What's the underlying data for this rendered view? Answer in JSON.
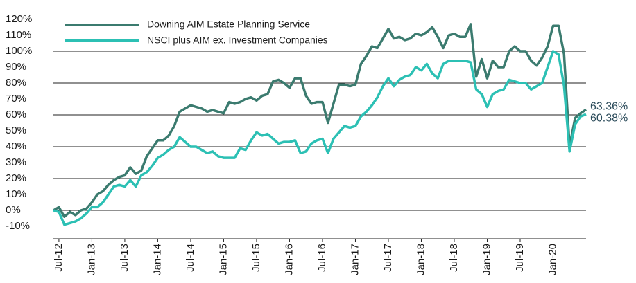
{
  "chart_data": {
    "type": "line",
    "categories": [
      null,
      "Jul-12",
      null,
      null,
      null,
      null,
      null,
      "Jan-13",
      null,
      null,
      null,
      null,
      null,
      "Jul-13",
      null,
      null,
      null,
      null,
      null,
      "Jan-14",
      null,
      null,
      null,
      null,
      null,
      "Jul-14",
      null,
      null,
      null,
      null,
      null,
      "Jan-15",
      null,
      null,
      null,
      null,
      null,
      "Jul-15",
      null,
      null,
      null,
      null,
      null,
      "Jan-16",
      null,
      null,
      null,
      null,
      null,
      "Jul-16",
      null,
      null,
      null,
      null,
      null,
      "Jan-17",
      null,
      null,
      null,
      null,
      null,
      "Jul-17",
      null,
      null,
      null,
      null,
      null,
      "Jan-18",
      null,
      null,
      null,
      null,
      null,
      "Jul-18",
      null,
      null,
      null,
      null,
      null,
      "Jan-19",
      null,
      null,
      null,
      null,
      null,
      "Jul-19",
      null,
      null,
      null,
      null,
      null,
      "Jan-20",
      null,
      null,
      null,
      null,
      null,
      null
    ],
    "series": [
      {
        "name": "Downing AIM Estate Planning Service",
        "color": "#3b7b6f",
        "values": [
          0,
          2,
          -4,
          -1,
          -3,
          0,
          1,
          5,
          10,
          12,
          16,
          19,
          21,
          22,
          27,
          23,
          25,
          34,
          39,
          44,
          44,
          47,
          53,
          62,
          64,
          66,
          65,
          64,
          62,
          63,
          62,
          61,
          68,
          67,
          68,
          70,
          71,
          69,
          72,
          73,
          81,
          82,
          80,
          77,
          83,
          83,
          72,
          67,
          68,
          68,
          55,
          67,
          79,
          79,
          78,
          79,
          92,
          97,
          103,
          102,
          108,
          114,
          108,
          109,
          107,
          108,
          111,
          110,
          112,
          115,
          109,
          102,
          110,
          111,
          109,
          109,
          117,
          84,
          95,
          83,
          94,
          90,
          90,
          100,
          103,
          100,
          100,
          94,
          91,
          96,
          103,
          116,
          116,
          98,
          40,
          58,
          61,
          63.36
        ],
        "value_labels": [
          null,
          null,
          null,
          null,
          null,
          null,
          null,
          null,
          null,
          null,
          null,
          null,
          null,
          null,
          null,
          null,
          null,
          null,
          null,
          null,
          null,
          null,
          null,
          null,
          null,
          null,
          null,
          null,
          null,
          null,
          null,
          null,
          null,
          null,
          null,
          null,
          null,
          null,
          null,
          null,
          null,
          null,
          null,
          null,
          null,
          null,
          null,
          null,
          null,
          null,
          null,
          null,
          null,
          null,
          null,
          null,
          null,
          null,
          null,
          null,
          null,
          null,
          null,
          null,
          null,
          null,
          null,
          null,
          null,
          null,
          null,
          null,
          null,
          null,
          null,
          null,
          null,
          null,
          null,
          null,
          null,
          null,
          null,
          null,
          null,
          null,
          null,
          null,
          null,
          null,
          null,
          null,
          null,
          null,
          null,
          null,
          null,
          "63.36%"
        ]
      },
      {
        "name": "NSCI plus AIM ex. Investment Companies",
        "color": "#2cc0b4",
        "values": [
          0,
          -1,
          -9,
          -8,
          -7,
          -5,
          -2,
          2,
          2,
          5,
          10,
          15,
          16,
          15,
          19,
          15,
          22,
          24,
          28,
          33,
          35,
          38,
          40,
          46,
          43,
          40,
          40,
          38,
          36,
          37,
          34,
          33,
          33,
          33,
          39,
          38,
          44,
          49,
          47,
          48,
          45,
          42,
          43,
          43,
          44,
          36,
          37,
          42,
          44,
          45,
          36,
          45,
          49,
          53,
          52,
          53,
          59,
          62,
          66,
          71,
          78,
          83,
          78,
          82,
          84,
          85,
          90,
          88,
          92,
          86,
          83,
          92,
          94,
          94,
          94,
          94,
          93,
          76,
          73,
          65,
          73,
          75,
          76,
          82,
          81,
          80,
          80,
          76,
          78,
          80,
          90,
          100,
          98,
          78,
          37,
          54,
          59,
          60.38
        ],
        "value_labels": [
          null,
          null,
          null,
          null,
          null,
          null,
          null,
          null,
          null,
          null,
          null,
          null,
          null,
          null,
          null,
          null,
          null,
          null,
          null,
          null,
          null,
          null,
          null,
          null,
          null,
          null,
          null,
          null,
          null,
          null,
          null,
          null,
          null,
          null,
          null,
          null,
          null,
          null,
          null,
          null,
          null,
          null,
          null,
          null,
          null,
          null,
          null,
          null,
          null,
          null,
          null,
          null,
          null,
          null,
          null,
          null,
          null,
          null,
          null,
          null,
          null,
          null,
          null,
          null,
          null,
          null,
          null,
          null,
          null,
          null,
          null,
          null,
          null,
          null,
          null,
          null,
          null,
          null,
          null,
          null,
          null,
          null,
          null,
          null,
          null,
          null,
          null,
          null,
          null,
          null,
          null,
          null,
          null,
          null,
          null,
          null,
          null,
          "60.38%"
        ]
      }
    ],
    "ylim": [
      -10,
      120
    ],
    "yticks": [
      {
        "value": -10,
        "label": "-10%"
      },
      {
        "value": 0,
        "label": "0%"
      },
      {
        "value": 10,
        "label": "10%"
      },
      {
        "value": 20,
        "label": "20%"
      },
      {
        "value": 30,
        "label": "30%"
      },
      {
        "value": 40,
        "label": "40%"
      },
      {
        "value": 50,
        "label": "50%"
      },
      {
        "value": 60,
        "label": "60%"
      },
      {
        "value": 70,
        "label": "70%"
      },
      {
        "value": 80,
        "label": "80%"
      },
      {
        "value": 90,
        "label": "90%"
      },
      {
        "value": 100,
        "label": "100%"
      },
      {
        "value": 110,
        "label": "110%"
      },
      {
        "value": 120,
        "label": "120%"
      }
    ],
    "grid": true,
    "legend": "top-left"
  }
}
